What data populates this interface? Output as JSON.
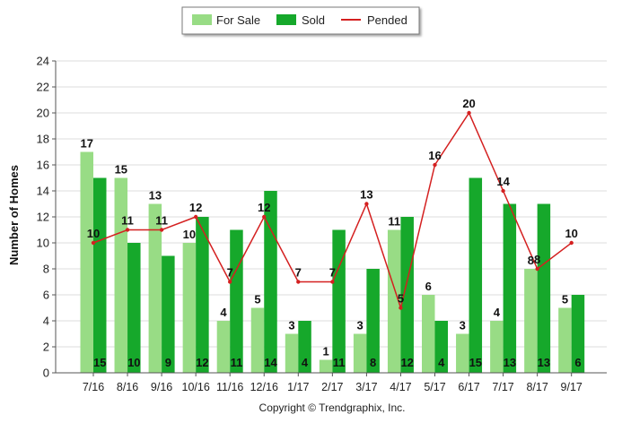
{
  "chart_data": {
    "type": "bar",
    "ylabel": "Number of Homes",
    "xlabel": "",
    "ylim": [
      0,
      24
    ],
    "yticks": [
      0,
      2,
      4,
      6,
      8,
      10,
      12,
      14,
      16,
      18,
      20,
      22,
      24
    ],
    "grid": true,
    "legend_position": "top-center",
    "categories": [
      "7/16",
      "8/16",
      "9/16",
      "10/16",
      "11/16",
      "12/16",
      "1/17",
      "2/17",
      "3/17",
      "4/17",
      "5/17",
      "6/17",
      "7/17",
      "8/17",
      "9/17"
    ],
    "series": [
      {
        "name": "For Sale",
        "type": "bar",
        "color": "#98dc85",
        "values": [
          17,
          15,
          13,
          10,
          4,
          5,
          3,
          1,
          3,
          11,
          6,
          3,
          4,
          8,
          5
        ]
      },
      {
        "name": "Sold",
        "type": "bar",
        "color": "#16a82b",
        "values": [
          15,
          10,
          9,
          12,
          11,
          14,
          4,
          11,
          8,
          12,
          4,
          15,
          13,
          13,
          6
        ]
      },
      {
        "name": "Pended",
        "type": "line",
        "color": "#d42020",
        "values": [
          10,
          11,
          11,
          12,
          7,
          12,
          7,
          7,
          13,
          5,
          16,
          20,
          14,
          8,
          10
        ]
      }
    ]
  },
  "footer": {
    "copyright": "Copyright © Trendgraphix, Inc."
  }
}
